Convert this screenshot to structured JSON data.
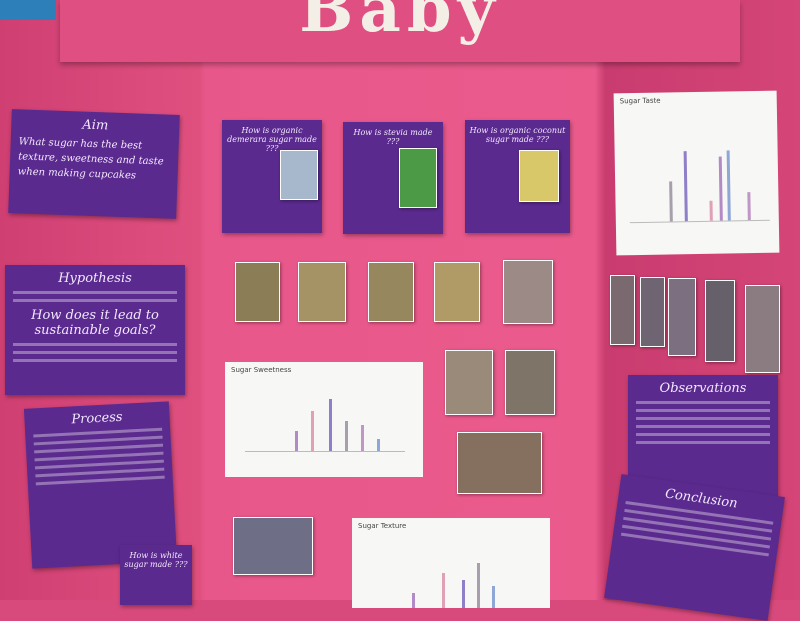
{
  "header": {
    "title": "Baby"
  },
  "left_panel": {
    "aim": {
      "title": "Aim",
      "text": "What sugar has the best texture, sweetness and taste when making cupcakes"
    },
    "hypothesis": {
      "title": "Hypothesis",
      "subtitle": "How does it lead to sustainable goals?"
    },
    "process": {
      "title": "Process"
    },
    "white_sugar": {
      "title": "How is white sugar made ???"
    }
  },
  "center_panel": {
    "cards": [
      {
        "title": "How is organic demerara sugar made ???"
      },
      {
        "title": "How is stevia made ???"
      },
      {
        "title": "How is organic coconut sugar made ???"
      }
    ],
    "charts": [
      {
        "title": "Sugar Sweetness"
      },
      {
        "title": "Sugar Texture"
      }
    ]
  },
  "right_panel": {
    "chart": {
      "title": "Sugar Taste"
    },
    "observations": {
      "title": "Observations"
    },
    "conclusion": {
      "title": "Conclusion"
    }
  }
}
